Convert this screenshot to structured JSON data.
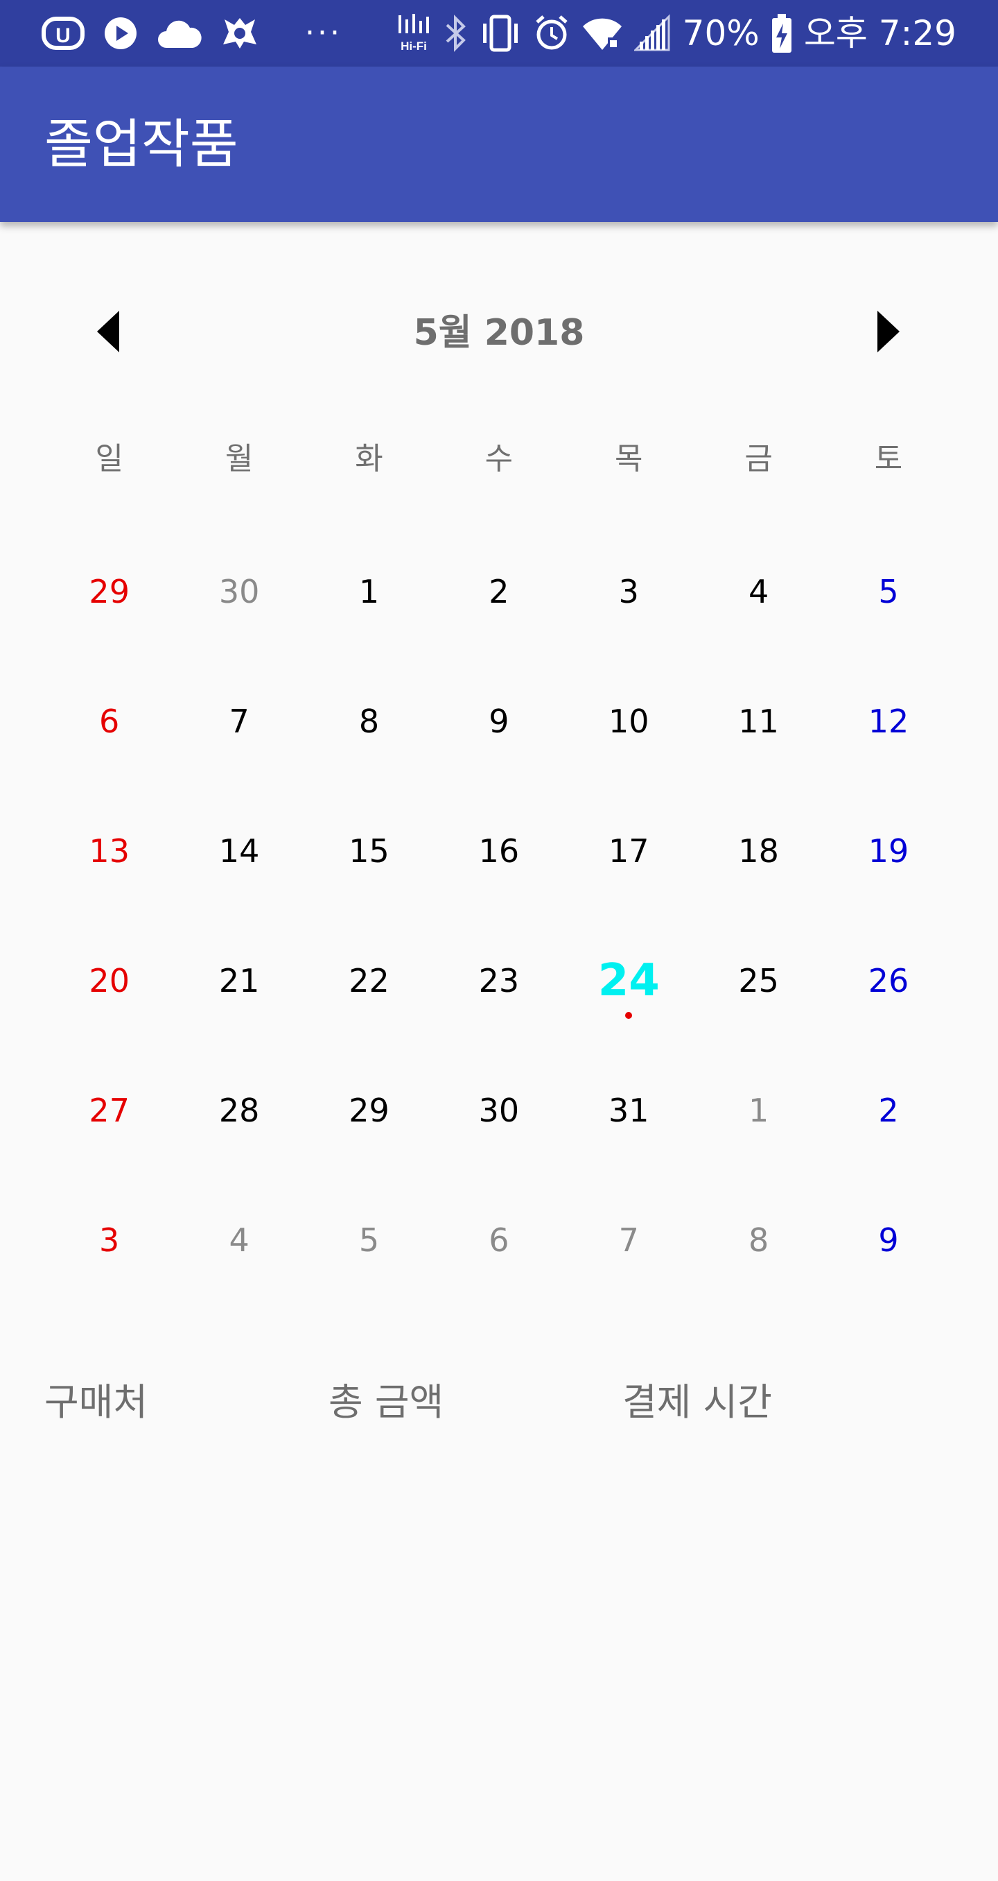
{
  "status_bar": {
    "battery": "70%",
    "time": "오후 7:29",
    "left_icons": [
      "u-plus-icon",
      "play-icon",
      "cloud-icon",
      "app-icon",
      "more-icon"
    ],
    "right_icons": [
      "hifi-icon",
      "bluetooth-icon",
      "vibrate-icon",
      "alarm-icon",
      "wifi-icon",
      "signal-icon",
      "battery-icon"
    ],
    "hifi_label": "Hi-Fi"
  },
  "app_bar": {
    "title": "졸업작품"
  },
  "calendar": {
    "title": "5월 2018",
    "weekdays": [
      "일",
      "월",
      "화",
      "수",
      "목",
      "금",
      "토"
    ],
    "weeks": [
      [
        "29",
        "30",
        "1",
        "2",
        "3",
        "4",
        "5"
      ],
      [
        "6",
        "7",
        "8",
        "9",
        "10",
        "11",
        "12"
      ],
      [
        "13",
        "14",
        "15",
        "16",
        "17",
        "18",
        "19"
      ],
      [
        "20",
        "21",
        "22",
        "23",
        "24",
        "25",
        "26"
      ],
      [
        "27",
        "28",
        "29",
        "30",
        "31",
        "1",
        "2"
      ],
      [
        "3",
        "4",
        "5",
        "6",
        "7",
        "8",
        "9"
      ]
    ],
    "today": "24"
  },
  "list_header": {
    "merchant": "구매처",
    "amount": "총 금액",
    "time": "결제 시간"
  },
  "colors": {
    "status_bar": "#303f9f",
    "app_bar": "#3f51b5",
    "sunday": "#e50000",
    "saturday": "#0000d6",
    "today": "#00f0f0"
  }
}
